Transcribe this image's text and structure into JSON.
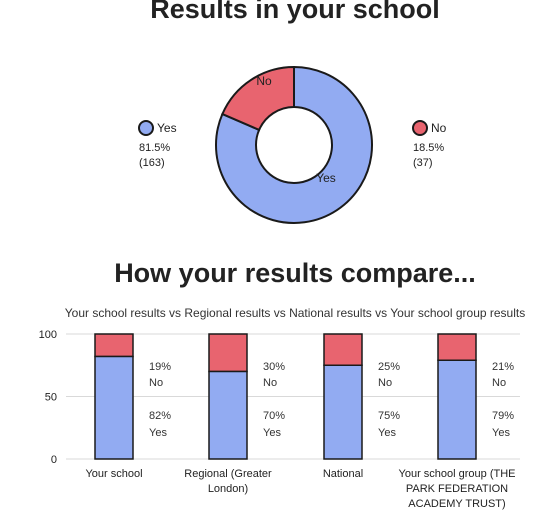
{
  "colors": {
    "yes": "#92abf2",
    "no": "#e8646f",
    "outline": "#1a1a1a",
    "grid": "#d9d9d9"
  },
  "chart_data": [
    {
      "type": "pie",
      "title": "Results in your school",
      "donut": true,
      "slices": [
        {
          "label": "Yes",
          "percent_label": "81.5%",
          "count_label": "(163)",
          "value": 163,
          "color": "#92abf2"
        },
        {
          "label": "No",
          "percent_label": "18.5%",
          "count_label": "(37)",
          "value": 37,
          "color": "#e8646f"
        }
      ],
      "legend": "left-and-right"
    },
    {
      "type": "bar",
      "stacked": true,
      "title": "How your results compare...",
      "subtitle": "Your school results vs Regional results vs National results vs Your school group results",
      "categories": [
        "Your school",
        "Regional (Greater London)",
        "National",
        "Your school group (THE PARK FEDERATION ACADEMY TRUST)"
      ],
      "series": [
        {
          "name": "Yes",
          "values": [
            82,
            70,
            75,
            79
          ],
          "value_labels": [
            "82%",
            "70%",
            "75%",
            "79%"
          ],
          "color": "#92abf2"
        },
        {
          "name": "No",
          "values": [
            19,
            30,
            25,
            21
          ],
          "value_labels": [
            "19%",
            "30%",
            "25%",
            "21%"
          ],
          "color": "#e8646f"
        }
      ],
      "ylim": [
        0,
        100
      ],
      "yticks": [
        "0",
        "50",
        "100"
      ],
      "grid": true
    }
  ]
}
